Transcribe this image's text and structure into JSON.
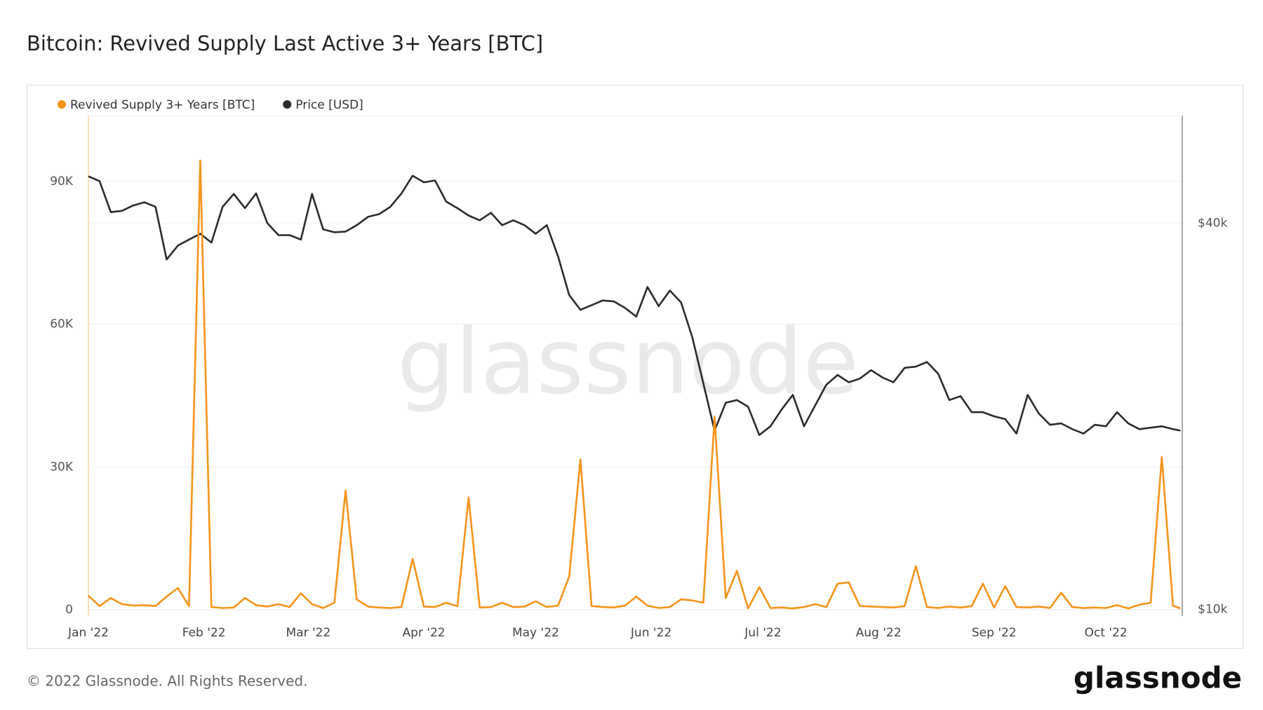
{
  "chart_data": {
    "type": "line",
    "title": "Bitcoin: Revived Supply Last Active 3+ Years [BTC]",
    "watermark": "glassnode",
    "footer": "© 2022 Glassnode. All Rights Reserved.",
    "logo": "glassnode",
    "x": [
      0,
      3,
      6,
      9,
      12,
      15,
      18,
      21,
      24,
      27,
      30,
      33,
      36,
      39,
      42,
      45,
      48,
      51,
      54,
      57,
      60,
      63,
      66,
      69,
      72,
      75,
      78,
      81,
      84,
      87,
      90,
      93,
      96,
      99,
      102,
      105,
      108,
      111,
      114,
      117,
      120,
      123,
      126,
      129,
      132,
      135,
      138,
      141,
      144,
      147,
      150,
      153,
      156,
      159,
      162,
      165,
      168,
      171,
      174,
      177,
      180,
      183,
      186,
      189,
      192,
      195,
      198,
      201,
      204,
      207,
      210,
      213,
      216,
      219,
      222,
      225,
      228,
      231,
      234,
      237,
      240,
      243,
      246,
      249,
      252,
      255,
      258,
      261,
      264,
      267,
      270,
      273,
      276,
      279,
      282,
      285,
      288,
      291,
      293
    ],
    "xlim": [
      0,
      293.5
    ],
    "xticks": [
      {
        "value": 0,
        "label": "Jan '22"
      },
      {
        "value": 31,
        "label": "Feb '22"
      },
      {
        "value": 59,
        "label": "Mar '22"
      },
      {
        "value": 90,
        "label": "Apr '22"
      },
      {
        "value": 120,
        "label": "May '22"
      },
      {
        "value": 151,
        "label": "Jun '22"
      },
      {
        "value": 181,
        "label": "Jul '22"
      },
      {
        "value": 212,
        "label": "Aug '22"
      },
      {
        "value": 243,
        "label": "Sep '22"
      },
      {
        "value": 273,
        "label": "Oct '22"
      }
    ],
    "ylim": [
      -1300,
      103800
    ],
    "yticks": [
      0,
      {
        "value": 30000,
        "label": "30K"
      },
      {
        "value": 60000,
        "label": "60K"
      },
      {
        "value": 90000,
        "label": "90K"
      }
    ],
    "y2lim": [
      9770,
      58800
    ],
    "y2ticks": [
      {
        "value": 10000,
        "label": "$10k"
      },
      {
        "value": 40000,
        "label": "$40k"
      }
    ],
    "y2_log": true,
    "grid": true,
    "series": [
      {
        "name": "Revived Supply 3+ Years [BTC]",
        "color": "#f7931a",
        "values": [
          3000,
          800,
          2500,
          1200,
          900,
          1000,
          800,
          2800,
          4600,
          800,
          94400,
          600,
          400,
          500,
          2500,
          1000,
          700,
          1200,
          600,
          3500,
          1200,
          400,
          1500,
          25100,
          2200,
          700,
          500,
          400,
          600,
          10700,
          700,
          600,
          1500,
          800,
          23600,
          500,
          600,
          1500,
          600,
          700,
          1800,
          600,
          900,
          7000,
          31600,
          800,
          600,
          500,
          900,
          2800,
          900,
          400,
          600,
          2200,
          2000,
          1500,
          40600,
          2500,
          8200,
          300,
          4800,
          400,
          500,
          300,
          600,
          1200,
          600,
          5500,
          5800,
          800,
          700,
          600,
          500,
          800,
          9200,
          600,
          400,
          700,
          500,
          800,
          5500,
          500,
          5000,
          600,
          500,
          700,
          400,
          3600,
          600,
          400,
          500,
          400,
          1000,
          300,
          1100,
          1500,
          32100,
          900,
          300
        ]
      },
      {
        "name": "Price [USD]",
        "color": "#2b2b2b",
        "axis": "y2",
        "values": [
          47300,
          46500,
          41600,
          41800,
          42600,
          43100,
          42400,
          35100,
          36900,
          37700,
          38500,
          37300,
          42400,
          44400,
          42200,
          44500,
          40000,
          38300,
          38300,
          37700,
          44400,
          39100,
          38700,
          38800,
          39700,
          40900,
          41300,
          42400,
          44500,
          47400,
          46300,
          46600,
          43200,
          42200,
          41100,
          40400,
          41500,
          39700,
          40400,
          39700,
          38500,
          39700,
          35500,
          30900,
          29300,
          29800,
          30300,
          30200,
          29500,
          28600,
          31800,
          29700,
          31400,
          30100,
          26600,
          22500,
          19000,
          21000,
          21200,
          20700,
          18700,
          19300,
          20500,
          21600,
          19300,
          20800,
          22400,
          23200,
          22600,
          22900,
          23600,
          23000,
          22600,
          23800,
          23900,
          24300,
          23300,
          21200,
          21500,
          20300,
          20300,
          20000,
          19800,
          18800,
          21600,
          20200,
          19400,
          19500,
          19100,
          18800,
          19400,
          19300,
          20300,
          19500,
          19100,
          19200,
          19300,
          19100,
          19000
        ]
      }
    ]
  }
}
